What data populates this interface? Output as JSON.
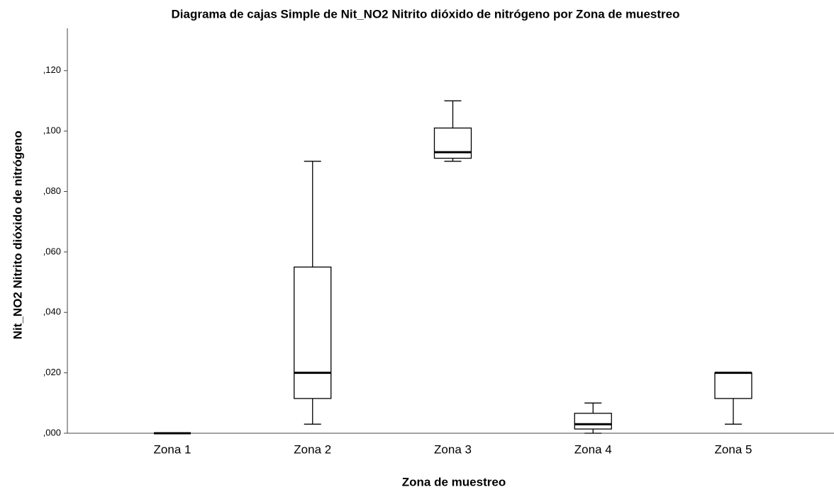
{
  "chart_data": {
    "type": "box",
    "title": "Diagrama de cajas Simple de Nit_NO2 Nitrito  dióxido de nitrógeno por Zona de muestreo",
    "x_label": "Zona de muestreo",
    "y_label": "Nit_NO2 Nitrito  dióxido de nitrógeno",
    "categories": [
      "Zona 1",
      "Zona 2",
      "Zona 3",
      "Zona 4",
      "Zona 5"
    ],
    "boxes": [
      {
        "min": 0,
        "q1": 0,
        "median": 0,
        "q3": 0,
        "max": 0
      },
      {
        "min": 0.003,
        "q1": 0.0115,
        "median": 0.02,
        "q3": 0.055,
        "max": 0.09
      },
      {
        "min": 0.09,
        "q1": 0.091,
        "median": 0.093,
        "q3": 0.101,
        "max": 0.11
      },
      {
        "min": 0,
        "q1": 0.0014,
        "median": 0.003,
        "q3": 0.0066,
        "max": 0.01
      },
      {
        "min": 0.003,
        "q1": 0.0115,
        "median": 0.02,
        "q3": 0.02,
        "max": 0.02
      }
    ],
    "color": "#ffffff",
    "ylim": [
      0,
      0.134
    ],
    "yticks": [
      {
        "value": 0,
        "label": ",000"
      },
      {
        "value": 0.02,
        "label": ",020"
      },
      {
        "value": 0.04,
        "label": ",040"
      },
      {
        "value": 0.06,
        "label": ",060"
      },
      {
        "value": 0.08,
        "label": ",080"
      },
      {
        "value": 0.1,
        "label": ",100"
      },
      {
        "value": 0.12,
        "label": ",120"
      }
    ],
    "grid": false
  }
}
